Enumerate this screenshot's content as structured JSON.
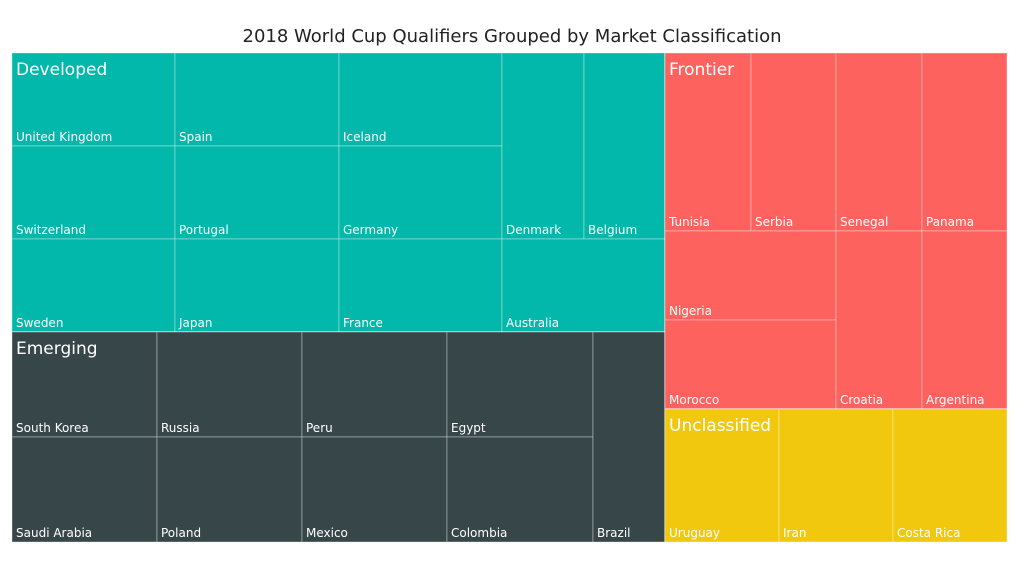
{
  "chart_data": {
    "type": "treemap",
    "title": "2018 World Cup Qualifiers Grouped by Market Classification",
    "groups": [
      {
        "name": "Developed",
        "color": "#01B8AA",
        "items": [
          "United Kingdom",
          "Spain",
          "Iceland",
          "Switzerland",
          "Portugal",
          "Germany",
          "Denmark",
          "Belgium",
          "Sweden",
          "Japan",
          "France",
          "Australia"
        ]
      },
      {
        "name": "Emerging",
        "color": "#374649",
        "items": [
          "South Korea",
          "Russia",
          "Peru",
          "Egypt",
          "Saudi Arabia",
          "Poland",
          "Mexico",
          "Colombia",
          "Brazil"
        ]
      },
      {
        "name": "Frontier",
        "color": "#FD625E",
        "items": [
          "Tunisia",
          "Serbia",
          "Senegal",
          "Panama",
          "Nigeria",
          "Morocco",
          "Croatia",
          "Argentina"
        ]
      },
      {
        "name": "Unclassified",
        "color": "#F2C80F",
        "items": [
          "Uruguay",
          "Iran",
          "Costa Rica"
        ]
      }
    ]
  }
}
